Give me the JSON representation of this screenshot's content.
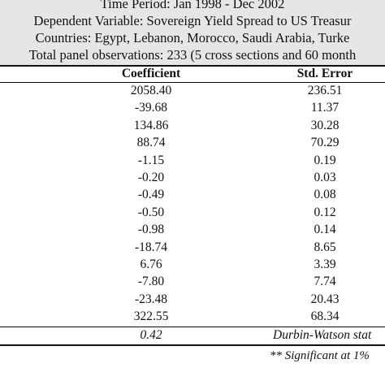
{
  "header": {
    "lines": [
      "Time Period: Jan 1998 - Dec 2002",
      "Dependent Variable: Sovereign Yield Spread to US Treasur",
      "Countries: Egypt, Lebanon, Morocco, Saudi Arabia, Turke",
      "Total panel observations: 233 (5 cross sections and 60 month"
    ]
  },
  "table": {
    "columns": [
      "Coefficient",
      "Std. Error"
    ],
    "rows": [
      {
        "coef": "2058.40",
        "se": "236.51"
      },
      {
        "coef": "-39.68",
        "se": "11.37"
      },
      {
        "coef": "134.86",
        "se": "30.28"
      },
      {
        "coef": "88.74",
        "se": "70.29"
      },
      {
        "coef": "-1.15",
        "se": "0.19"
      },
      {
        "coef": "-0.20",
        "se": "0.03"
      },
      {
        "coef": "-0.49",
        "se": "0.08"
      },
      {
        "coef": "-0.50",
        "se": "0.12"
      },
      {
        "coef": "-0.98",
        "se": "0.14"
      },
      {
        "coef": "-18.74",
        "se": "8.65"
      },
      {
        "coef": "6.76",
        "se": "3.39"
      },
      {
        "coef": "-7.80",
        "se": "7.74"
      },
      {
        "coef": "-23.48",
        "se": "20.43"
      },
      {
        "coef": "322.55",
        "se": "68.34"
      }
    ],
    "footer": {
      "value": "0.42",
      "label": "Durbin-Watson stat"
    },
    "note": "** Significant at 1%"
  }
}
